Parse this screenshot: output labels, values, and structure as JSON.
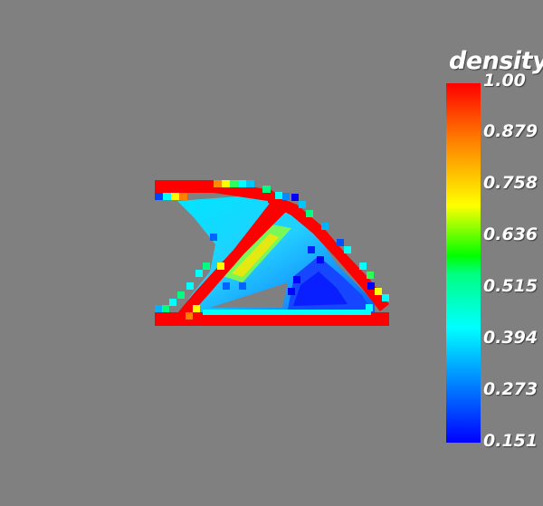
{
  "legend": {
    "title": "density",
    "ticks": [
      "1.00",
      "0.879",
      "0.758",
      "0.636",
      "0.515",
      "0.394",
      "0.273",
      "0.151"
    ],
    "range": [
      0.151,
      1.0
    ],
    "colormap": [
      "#0000ff",
      "#00b4ff",
      "#00ffff",
      "#00ff80",
      "#00ff00",
      "#ffff00",
      "#ff8000",
      "#ff0000"
    ]
  },
  "colors": {
    "background": "#808080",
    "solid_member": "#ff0000",
    "low_density": "#0000ff"
  }
}
